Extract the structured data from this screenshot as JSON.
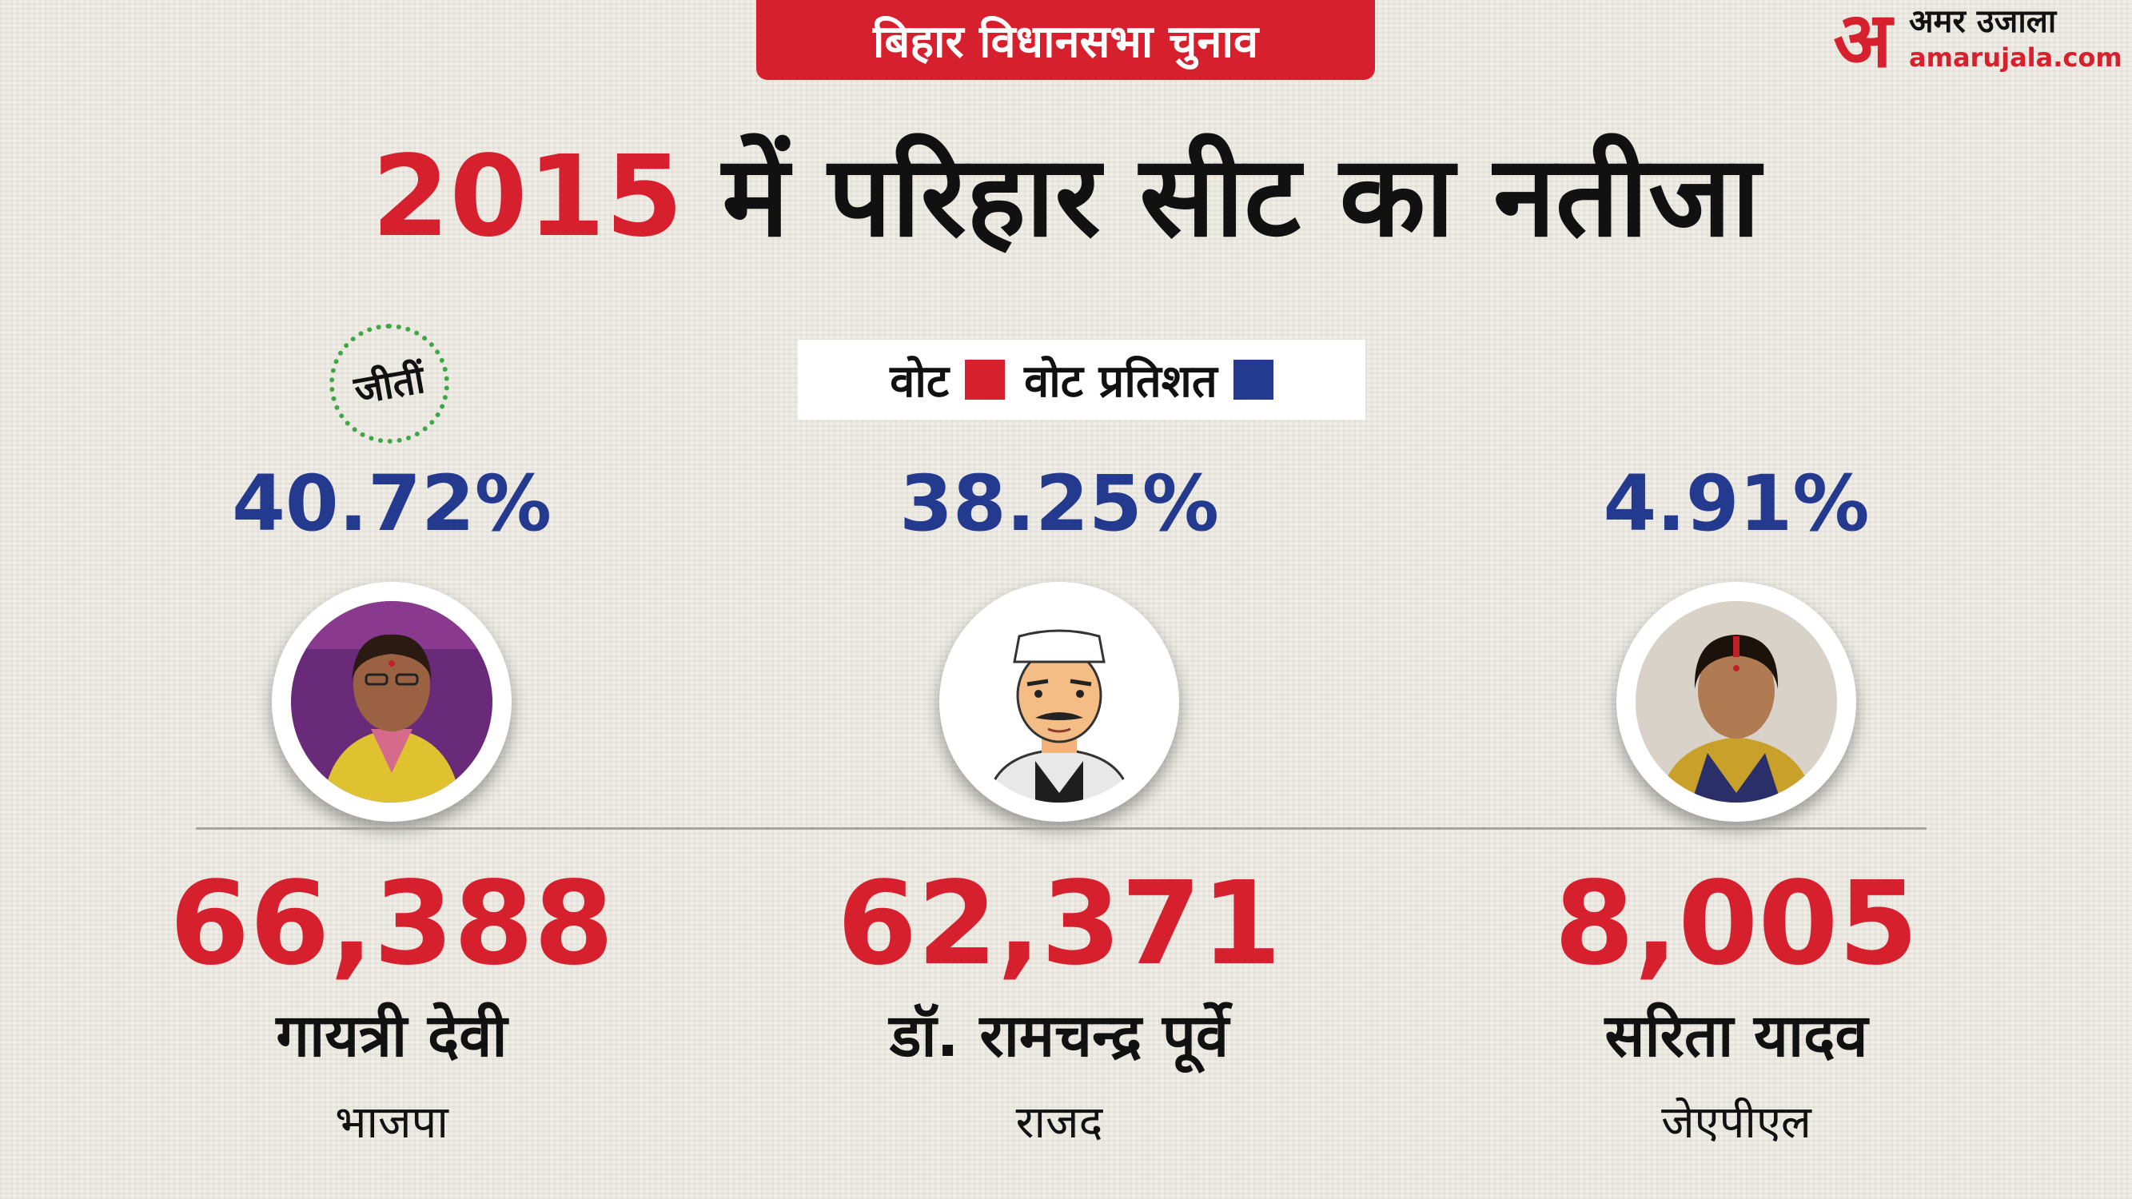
{
  "header": {
    "badge": "बिहार विधानसभा चुनाव",
    "title_year": "2015",
    "title_rest": "में परिहार सीट का नतीजा"
  },
  "brand": {
    "mark": "अ",
    "name": "अमर उजाला",
    "domain": "amarujala.com"
  },
  "legend": {
    "votes_label": "वोट",
    "votes_color": "#d7202d",
    "percent_label": "वोट प्रतिशत",
    "percent_color": "#233a8f"
  },
  "winner_seal": "जीतीं",
  "candidates": [
    {
      "vote_percent": "40.72%",
      "votes": "66,388",
      "name": "गायत्री देवी",
      "party": "भाजपा",
      "winner": true
    },
    {
      "vote_percent": "38.25%",
      "votes": "62,371",
      "name": "डॉ. रामचन्द्र पूर्वे",
      "party": "राजद",
      "winner": false
    },
    {
      "vote_percent": "4.91%",
      "votes": "8,005",
      "name": "सरिता यादव",
      "party": "जेएपीएल",
      "winner": false
    }
  ]
}
